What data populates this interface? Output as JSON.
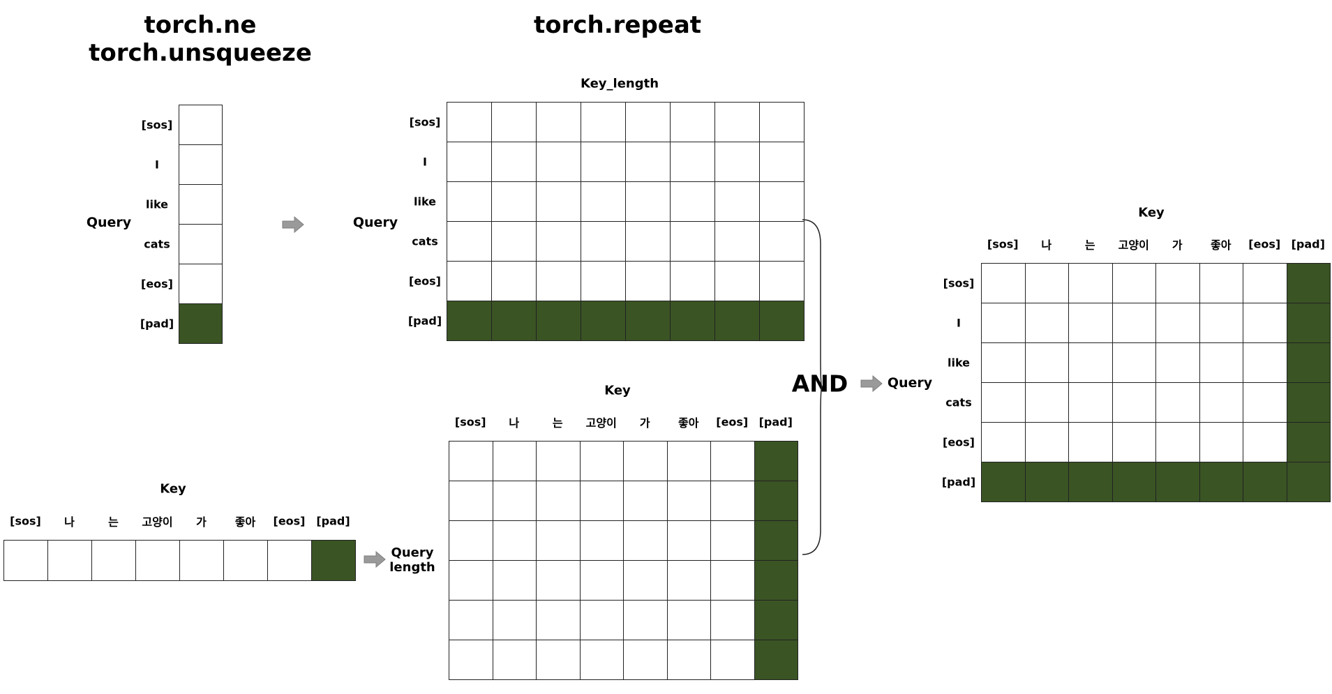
{
  "titles": {
    "left_line1": "torch.ne",
    "left_line2": "torch.unsqueeze",
    "middle": "torch.repeat"
  },
  "labels": {
    "query": "Query",
    "key": "Key",
    "key_length": "Key_length",
    "query_length_line1": "Query",
    "query_length_line2": "length",
    "and": "AND"
  },
  "query_tokens": [
    "[sos]",
    "I",
    "like",
    "cats",
    "[eos]",
    "[pad]"
  ],
  "key_tokens": [
    "[sos]",
    "나",
    "는",
    "고양이",
    "가",
    "좋아",
    "[eos]",
    "[pad]"
  ],
  "colors": {
    "pad_fill": "#3a5424",
    "cell_fill": "#ffffff",
    "grid_line": "#222222",
    "arrow_fill": "#9a9a9a"
  },
  "masks": {
    "query_column": [
      [
        0
      ],
      [
        0
      ],
      [
        0
      ],
      [
        0
      ],
      [
        0
      ],
      [
        1
      ]
    ],
    "key_row": [
      [
        0,
        0,
        0,
        0,
        0,
        0,
        0,
        1
      ]
    ],
    "query_repeated": [
      [
        0,
        0,
        0,
        0,
        0,
        0,
        0,
        0
      ],
      [
        0,
        0,
        0,
        0,
        0,
        0,
        0,
        0
      ],
      [
        0,
        0,
        0,
        0,
        0,
        0,
        0,
        0
      ],
      [
        0,
        0,
        0,
        0,
        0,
        0,
        0,
        0
      ],
      [
        0,
        0,
        0,
        0,
        0,
        0,
        0,
        0
      ],
      [
        1,
        1,
        1,
        1,
        1,
        1,
        1,
        1
      ]
    ],
    "key_repeated": [
      [
        0,
        0,
        0,
        0,
        0,
        0,
        0,
        1
      ],
      [
        0,
        0,
        0,
        0,
        0,
        0,
        0,
        1
      ],
      [
        0,
        0,
        0,
        0,
        0,
        0,
        0,
        1
      ],
      [
        0,
        0,
        0,
        0,
        0,
        0,
        0,
        1
      ],
      [
        0,
        0,
        0,
        0,
        0,
        0,
        0,
        1
      ],
      [
        0,
        0,
        0,
        0,
        0,
        0,
        0,
        1
      ]
    ],
    "combined": [
      [
        0,
        0,
        0,
        0,
        0,
        0,
        0,
        1
      ],
      [
        0,
        0,
        0,
        0,
        0,
        0,
        0,
        1
      ],
      [
        0,
        0,
        0,
        0,
        0,
        0,
        0,
        1
      ],
      [
        0,
        0,
        0,
        0,
        0,
        0,
        0,
        1
      ],
      [
        0,
        0,
        0,
        0,
        0,
        0,
        0,
        1
      ],
      [
        1,
        1,
        1,
        1,
        1,
        1,
        1,
        1
      ]
    ]
  }
}
